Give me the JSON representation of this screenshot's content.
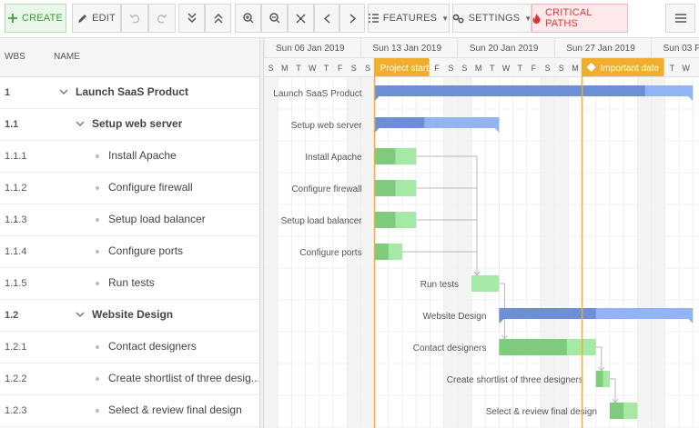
{
  "toolbar": {
    "create_label": "CREATE",
    "edit_label": "EDIT",
    "features_label": "FEATURES",
    "settings_label": "SETTINGS",
    "critical_label": "CRITICAL PATHS",
    "icons": {
      "create": "plus-icon",
      "edit": "pencil-icon",
      "undo": "undo-icon",
      "redo": "redo-icon",
      "collapse": "collapse-all-icon",
      "expand": "expand-all-icon",
      "zoomin": "zoom-in-icon",
      "zoomout": "zoom-out-icon",
      "fit": "fit-icon",
      "prev": "chevron-left-icon",
      "next": "chevron-right-icon",
      "features": "list-icon",
      "settings": "gears-icon",
      "critical": "fire-icon",
      "menu": "hamburger-icon"
    }
  },
  "grid": {
    "col_wbs": "WBS",
    "col_name": "NAME",
    "rows": [
      {
        "wbs": "1",
        "name": "Launch SaaS Product",
        "level": 0,
        "parent": true,
        "expanded": true
      },
      {
        "wbs": "1.1",
        "name": "Setup web server",
        "level": 1,
        "parent": true,
        "expanded": true
      },
      {
        "wbs": "1.1.1",
        "name": "Install Apache",
        "level": 2,
        "parent": false
      },
      {
        "wbs": "1.1.2",
        "name": "Configure firewall",
        "level": 2,
        "parent": false
      },
      {
        "wbs": "1.1.3",
        "name": "Setup load balancer",
        "level": 2,
        "parent": false
      },
      {
        "wbs": "1.1.4",
        "name": "Configure ports",
        "level": 2,
        "parent": false
      },
      {
        "wbs": "1.1.5",
        "name": "Run tests",
        "level": 2,
        "parent": false
      },
      {
        "wbs": "1.2",
        "name": "Website Design",
        "level": 1,
        "parent": true,
        "expanded": true
      },
      {
        "wbs": "1.2.1",
        "name": "Contact designers",
        "level": 2,
        "parent": false
      },
      {
        "wbs": "1.2.2",
        "name": "Create shortlist of three desig...",
        "level": 2,
        "parent": false
      },
      {
        "wbs": "1.2.3",
        "name": "Select & review final design",
        "level": 2,
        "parent": false
      }
    ]
  },
  "timeline": {
    "weeks": [
      "Sun 06 Jan 2019",
      "Sun 13 Jan 2019",
      "Sun 20 Jan 2019",
      "Sun 27 Jan 2019",
      "Sun 03 F"
    ],
    "days": [
      "S",
      "M",
      "T",
      "W",
      "T",
      "F",
      "S",
      "S",
      "M",
      "T",
      "W",
      "T",
      "F",
      "S",
      "S",
      "M",
      "T",
      "W",
      "T",
      "F",
      "S",
      "S",
      "M",
      "T",
      "W",
      "T",
      "F",
      "S",
      "S",
      "T",
      "W"
    ],
    "start_date": "Sun 06 Jan 2019",
    "day_count": 31,
    "markers": [
      {
        "label": "Project start",
        "day": 8,
        "color": "#f0ad2e"
      },
      {
        "label": "Important date",
        "day": 23,
        "color": "#f0ad2e"
      }
    ],
    "tasks": [
      {
        "name": "Launch SaaS Product",
        "row": 0,
        "start": 8,
        "duration": 23,
        "percent": 85,
        "type": "parent"
      },
      {
        "name": "Setup web server",
        "row": 1,
        "start": 8,
        "duration": 9,
        "percent": 40,
        "type": "parent"
      },
      {
        "name": "Install Apache",
        "row": 2,
        "start": 8,
        "duration": 3,
        "percent": 50,
        "type": "task"
      },
      {
        "name": "Configure firewall",
        "row": 3,
        "start": 8,
        "duration": 3,
        "percent": 50,
        "type": "task"
      },
      {
        "name": "Setup load balancer",
        "row": 4,
        "start": 8,
        "duration": 3,
        "percent": 50,
        "type": "task"
      },
      {
        "name": "Configure ports",
        "row": 5,
        "start": 8,
        "duration": 2,
        "percent": 50,
        "type": "task"
      },
      {
        "name": "Run tests",
        "row": 6,
        "start": 15,
        "duration": 2,
        "percent": 0,
        "type": "task"
      },
      {
        "name": "Website Design",
        "row": 7,
        "start": 17,
        "duration": 14,
        "percent": 50,
        "type": "parent"
      },
      {
        "name": "Contact designers",
        "row": 8,
        "start": 17,
        "duration": 7,
        "percent": 70,
        "type": "task"
      },
      {
        "name": "Create shortlist of three designers",
        "row": 9,
        "start": 24,
        "duration": 1,
        "percent": 50,
        "type": "task"
      },
      {
        "name": "Select & review final design",
        "row": 10,
        "start": 25,
        "duration": 2,
        "percent": 50,
        "type": "task"
      }
    ],
    "dependencies": [
      [
        2,
        6
      ],
      [
        3,
        6
      ],
      [
        4,
        6
      ],
      [
        5,
        6
      ],
      [
        6,
        8
      ],
      [
        8,
        9
      ],
      [
        9,
        10
      ]
    ],
    "colors": {
      "task_progress": "#7ecb7e",
      "task_remaining": "#a6e8a6",
      "parent_progress": "#6c8fd6",
      "parent_remaining": "#92b4f2",
      "weekend": "#f4f4f4",
      "grid_line": "#ececec",
      "dep_line": "#b8b8b8"
    }
  }
}
